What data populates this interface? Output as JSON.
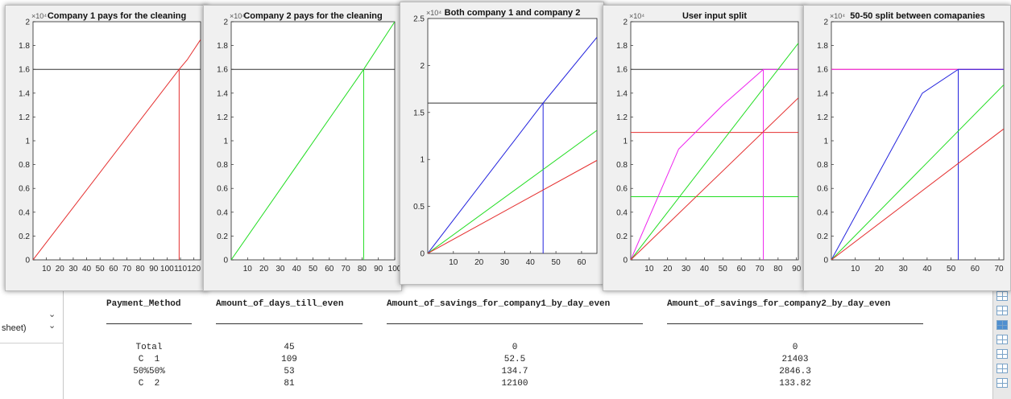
{
  "sidebar": {
    "sheet_label": "sheet)",
    "dropdown_icon": "chevron-down-icon"
  },
  "table": {
    "headers": [
      "Payment_Method",
      "Amount_of_days_till_even",
      "Amount_of_savings_for_company1_by_day_even",
      "Amount_of_savings_for_company2_by_day_even"
    ],
    "rows": [
      [
        "Total",
        "45",
        "0",
        "0"
      ],
      [
        "C  1",
        "109",
        "52.5",
        "21403"
      ],
      [
        "50%50%",
        "53",
        "134.7",
        "2846.3"
      ],
      [
        "C  2",
        "81",
        "12100",
        "133.82"
      ]
    ]
  },
  "colors": {
    "red": "#e53030",
    "green": "#22dd22",
    "blue": "#2222dd",
    "magenta": "#ee22ee",
    "black": "#333333",
    "plot_bg": "#ffffff",
    "window_bg": "#f0f0f0"
  },
  "chart_data": [
    {
      "type": "line",
      "title": "Company 1 pays for the cleaning",
      "exponent": "×10⁴",
      "xlim": [
        0,
        125
      ],
      "ylim": [
        0,
        2
      ],
      "xticks": [
        "10",
        "20",
        "30",
        "40",
        "50",
        "60",
        "70",
        "80",
        "90",
        "100",
        "110",
        "120"
      ],
      "yticks": [
        "0",
        "0.2",
        "0.4",
        "0.6",
        "0.8",
        "1",
        "1.2",
        "1.4",
        "1.6",
        "1.8",
        "2"
      ],
      "series": [
        {
          "color": "red",
          "x": [
            0,
            109,
            115,
            125
          ],
          "y": [
            0,
            1.6,
            1.68,
            1.85
          ]
        }
      ],
      "hlines": [
        {
          "color": "black",
          "y": 1.6
        }
      ],
      "vlines": [
        {
          "color": "red",
          "x": 109,
          "y": 1.6
        }
      ]
    },
    {
      "type": "line",
      "title": "Company 2 pays for the cleaning",
      "exponent": "×10⁴",
      "xlim": [
        0,
        100
      ],
      "ylim": [
        0,
        2
      ],
      "xticks": [
        "10",
        "20",
        "30",
        "40",
        "50",
        "60",
        "70",
        "80",
        "90",
        "100"
      ],
      "yticks": [
        "0",
        "0.2",
        "0.4",
        "0.6",
        "0.8",
        "1",
        "1.2",
        "1.4",
        "1.6",
        "1.8",
        "2"
      ],
      "series": [
        {
          "color": "green",
          "x": [
            0,
            81,
            100
          ],
          "y": [
            0,
            1.6,
            2.0
          ]
        }
      ],
      "hlines": [
        {
          "color": "black",
          "y": 1.6
        }
      ],
      "vlines": [
        {
          "color": "green",
          "x": 81,
          "y": 1.6
        }
      ]
    },
    {
      "type": "line",
      "title": "Both company 1 and company 2",
      "exponent": "×10⁴",
      "xlim": [
        0,
        66
      ],
      "ylim": [
        0,
        2.5
      ],
      "xticks": [
        "10",
        "20",
        "30",
        "40",
        "50",
        "60"
      ],
      "yticks": [
        "0",
        "0.5",
        "1",
        "1.5",
        "2",
        "2.5"
      ],
      "series": [
        {
          "color": "blue",
          "x": [
            0,
            45,
            66
          ],
          "y": [
            0,
            1.6,
            2.3
          ]
        },
        {
          "color": "green",
          "x": [
            0,
            66
          ],
          "y": [
            0,
            1.31
          ]
        },
        {
          "color": "red",
          "x": [
            0,
            66
          ],
          "y": [
            0,
            0.99
          ]
        }
      ],
      "hlines": [
        {
          "color": "black",
          "y": 1.6
        }
      ],
      "vlines": [
        {
          "color": "blue",
          "x": 45,
          "y": 1.6
        }
      ]
    },
    {
      "type": "line",
      "title": "User input split",
      "exponent": "×10⁴",
      "xlim": [
        0,
        91
      ],
      "ylim": [
        0,
        2
      ],
      "xticks": [
        "10",
        "20",
        "30",
        "40",
        "50",
        "60",
        "70",
        "80",
        "90"
      ],
      "yticks": [
        "0",
        "0.2",
        "0.4",
        "0.6",
        "0.8",
        "1",
        "1.2",
        "1.4",
        "1.6",
        "1.8",
        "2"
      ],
      "series": [
        {
          "color": "magenta",
          "x": [
            0,
            26,
            50,
            72,
            91
          ],
          "y": [
            0,
            0.93,
            1.3,
            1.6,
            1.6
          ]
        },
        {
          "color": "green",
          "x": [
            0,
            91
          ],
          "y": [
            0,
            1.82
          ]
        },
        {
          "color": "red",
          "x": [
            0,
            91
          ],
          "y": [
            0,
            1.36
          ]
        }
      ],
      "hlines": [
        {
          "color": "black",
          "y": 1.6
        },
        {
          "color": "red",
          "y": 1.07
        },
        {
          "color": "green",
          "y": 0.53
        }
      ],
      "vlines": [
        {
          "color": "magenta",
          "x": 72,
          "y": 1.6
        }
      ]
    },
    {
      "type": "line",
      "title": "50-50 split between comapanies",
      "exponent": "×10⁴",
      "xlim": [
        0,
        72
      ],
      "ylim": [
        0,
        2
      ],
      "xticks": [
        "10",
        "20",
        "30",
        "40",
        "50",
        "60",
        "70"
      ],
      "yticks": [
        "0",
        "0.2",
        "0.4",
        "0.6",
        "0.8",
        "1",
        "1.2",
        "1.4",
        "1.6",
        "1.8",
        "2"
      ],
      "series": [
        {
          "color": "blue",
          "x": [
            0,
            38,
            53,
            72
          ],
          "y": [
            0,
            1.4,
            1.6,
            1.6
          ]
        },
        {
          "color": "green",
          "x": [
            0,
            72
          ],
          "y": [
            0,
            1.47
          ]
        },
        {
          "color": "red",
          "x": [
            0,
            72
          ],
          "y": [
            0,
            1.1
          ]
        }
      ],
      "hlines": [
        {
          "color": "red",
          "y": 1.6
        },
        {
          "color": "magenta",
          "y": 1.6
        }
      ],
      "vlines": [
        {
          "color": "blue",
          "x": 53,
          "y": 1.6
        }
      ]
    }
  ]
}
